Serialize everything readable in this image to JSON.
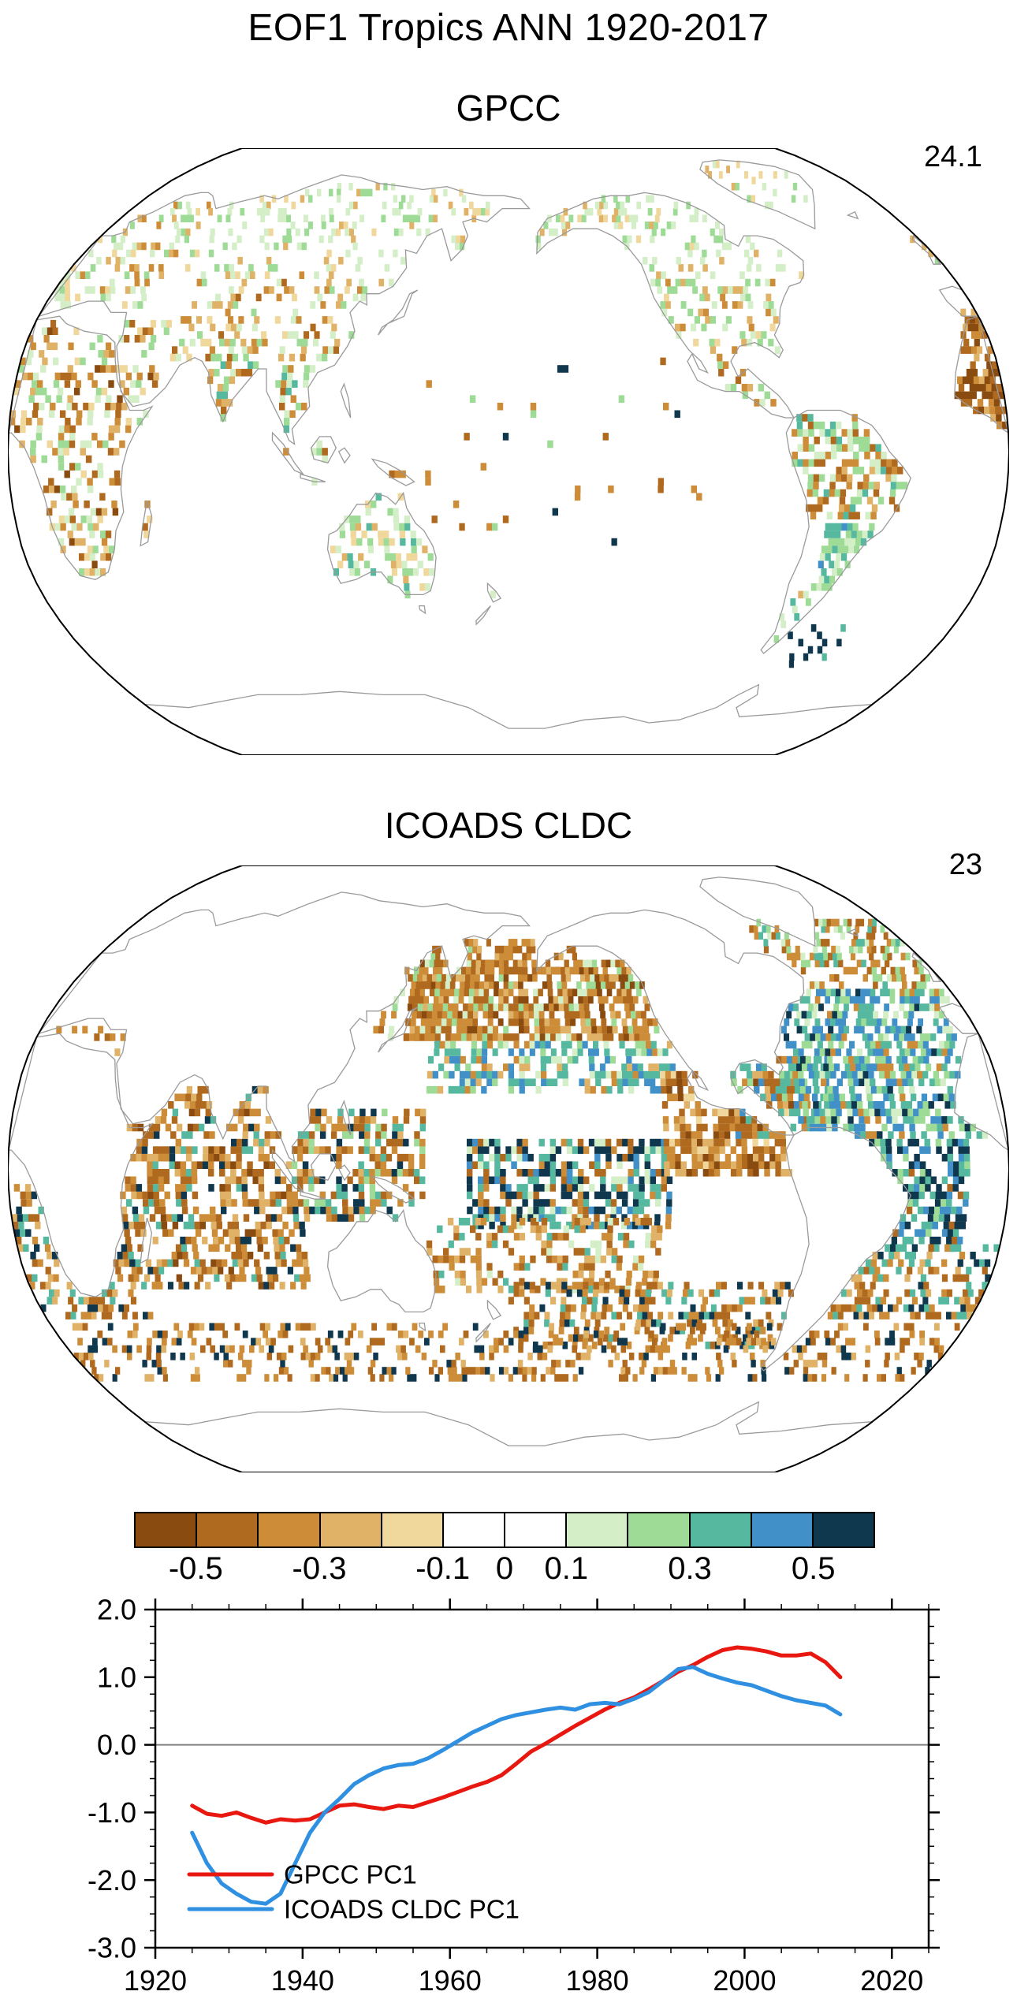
{
  "title": "EOF1 Tropics ANN 1920-2017",
  "maps": [
    {
      "title": "GPCC",
      "variance": "24.1"
    },
    {
      "title": "ICOADS CLDC",
      "variance": "23"
    }
  ],
  "colorbar": {
    "colors": [
      "#8a4b10",
      "#b06a1f",
      "#cc8c38",
      "#e0b268",
      "#f0d79c",
      "#ffffff",
      "#ffffff",
      "#d4efc8",
      "#9ddb96",
      "#57b8a0",
      "#4191c8",
      "#0f374d"
    ],
    "labels": [
      "-0.5",
      "-0.3",
      "-0.1",
      "0",
      "0.1",
      "0.3",
      "0.5"
    ],
    "label_boundaries": [
      1,
      3,
      5,
      6,
      7,
      9,
      11
    ]
  },
  "chart_data": [
    {
      "type": "map",
      "title": "GPCC",
      "annotation": "24.1",
      "description": "EOF1 loading pattern over land grid cells, colored with shared -0.5..0.5 scale"
    },
    {
      "type": "map",
      "title": "ICOADS CLDC",
      "annotation": "23",
      "description": "EOF1 loading pattern over ocean grid cells, colored with shared -0.5..0.5 scale"
    },
    {
      "type": "line",
      "title": "",
      "xlabel": "",
      "ylabel": "",
      "xlim": [
        1920,
        2025
      ],
      "ylim": [
        -3.0,
        2.0
      ],
      "xticks": [
        1920,
        1940,
        1960,
        1980,
        2000,
        2020
      ],
      "yticks": [
        2,
        1,
        0,
        -1,
        -2,
        -3
      ],
      "ytick_labels": [
        "2.0",
        "1.0",
        "0.0",
        "-1.0",
        "-2.0",
        "-3.0"
      ],
      "zero_line": true,
      "legend_position": "lower-left",
      "x": [
        1925,
        1927,
        1929,
        1931,
        1933,
        1935,
        1937,
        1939,
        1941,
        1943,
        1945,
        1947,
        1949,
        1951,
        1953,
        1955,
        1957,
        1959,
        1961,
        1963,
        1965,
        1967,
        1969,
        1971,
        1973,
        1975,
        1977,
        1979,
        1981,
        1983,
        1985,
        1987,
        1989,
        1991,
        1993,
        1995,
        1997,
        1999,
        2001,
        2003,
        2005,
        2007,
        2009,
        2011,
        2013
      ],
      "series": [
        {
          "name": "GPCC PC1",
          "color": "#e81810",
          "values": [
            -0.9,
            -1.02,
            -1.05,
            -1.0,
            -1.08,
            -1.15,
            -1.1,
            -1.12,
            -1.1,
            -1.0,
            -0.9,
            -0.88,
            -0.92,
            -0.95,
            -0.9,
            -0.92,
            -0.85,
            -0.78,
            -0.7,
            -0.62,
            -0.55,
            -0.45,
            -0.28,
            -0.1,
            0.02,
            0.15,
            0.28,
            0.4,
            0.52,
            0.62,
            0.7,
            0.82,
            0.95,
            1.08,
            1.18,
            1.3,
            1.4,
            1.44,
            1.42,
            1.38,
            1.32,
            1.32,
            1.35,
            1.22,
            1.0
          ]
        },
        {
          "name": "ICOADS CLDC PC1",
          "color": "#2f8fe0",
          "values": [
            -1.3,
            -1.75,
            -2.05,
            -2.2,
            -2.32,
            -2.35,
            -2.2,
            -1.75,
            -1.3,
            -1.0,
            -0.8,
            -0.58,
            -0.45,
            -0.35,
            -0.3,
            -0.28,
            -0.2,
            -0.08,
            0.05,
            0.18,
            0.28,
            0.38,
            0.44,
            0.48,
            0.52,
            0.55,
            0.52,
            0.6,
            0.62,
            0.6,
            0.68,
            0.78,
            0.95,
            1.12,
            1.15,
            1.05,
            0.98,
            0.92,
            0.88,
            0.8,
            0.72,
            0.66,
            0.62,
            0.58,
            0.45
          ]
        }
      ]
    }
  ]
}
